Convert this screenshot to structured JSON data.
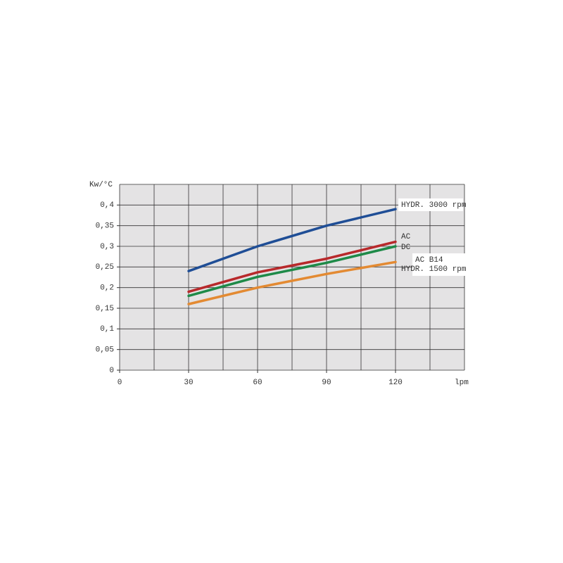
{
  "chart_data": {
    "type": "line",
    "x_label": "lpm",
    "y_label": "Kw/°C",
    "x": [
      30,
      60,
      90,
      120
    ],
    "series": [
      {
        "name": "HYDR. 3000 rpm",
        "color": "#1f4e96",
        "values": [
          0.24,
          0.3,
          0.35,
          0.39
        ]
      },
      {
        "name": "AC",
        "color": "#b8292b",
        "values": [
          0.19,
          0.237,
          0.27,
          0.311
        ]
      },
      {
        "name": "DC",
        "color": "#1e8a48",
        "values": [
          0.18,
          0.226,
          0.26,
          0.3
        ]
      },
      {
        "name": "AC B14",
        "color": "#e38a32",
        "values": [
          0.16,
          0.2,
          0.233,
          0.262
        ],
        "name2": "HYDR. 1500 rpm"
      }
    ],
    "xlim": [
      0,
      150
    ],
    "xticks": [
      0,
      30,
      60,
      90,
      120
    ],
    "xgrid": [
      0,
      15,
      30,
      45,
      60,
      75,
      90,
      105,
      120,
      135,
      150
    ],
    "ylim": [
      0,
      0.45
    ],
    "yticks": [
      0,
      {
        "value": 0.05,
        "label": "0,05"
      },
      {
        "value": 0.1,
        "label": "0,1"
      },
      {
        "value": 0.15,
        "label": "0,15"
      },
      {
        "value": 0.2,
        "label": "0,2"
      },
      {
        "value": 0.25,
        "label": "0,25"
      },
      {
        "value": 0.3,
        "label": "0,3"
      },
      {
        "value": 0.35,
        "label": "0,35"
      },
      {
        "value": 0.4,
        "label": "0,4"
      }
    ],
    "ygrid": [
      0,
      0.05,
      0.1,
      0.15,
      0.2,
      0.25,
      0.3,
      0.35,
      0.4,
      0.45
    ],
    "background": "#e4e3e4",
    "grid": true
  }
}
